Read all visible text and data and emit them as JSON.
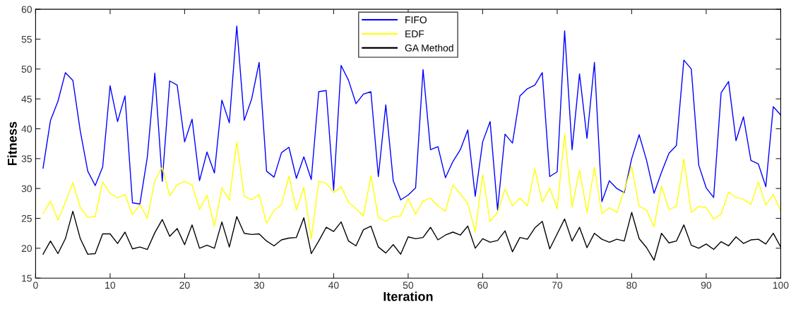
{
  "chart_data": {
    "type": "line",
    "xlabel": "Iteration",
    "ylabel": "Fitness",
    "x": [
      1,
      2,
      3,
      4,
      5,
      6,
      7,
      8,
      9,
      10,
      11,
      12,
      13,
      14,
      15,
      16,
      17,
      18,
      19,
      20,
      21,
      22,
      23,
      24,
      25,
      26,
      27,
      28,
      29,
      30,
      31,
      32,
      33,
      34,
      35,
      36,
      37,
      38,
      39,
      40,
      41,
      42,
      43,
      44,
      45,
      46,
      47,
      48,
      49,
      50,
      51,
      52,
      53,
      54,
      55,
      56,
      57,
      58,
      59,
      60,
      61,
      62,
      63,
      64,
      65,
      66,
      67,
      68,
      69,
      70,
      71,
      72,
      73,
      74,
      75,
      76,
      77,
      78,
      79,
      80,
      81,
      82,
      83,
      84,
      85,
      86,
      87,
      88,
      89,
      90,
      91,
      92,
      93,
      94,
      95,
      96,
      97,
      98,
      99,
      100
    ],
    "xlim": [
      0,
      100
    ],
    "xticks": [
      0,
      10,
      20,
      30,
      40,
      50,
      60,
      70,
      80,
      90,
      100
    ],
    "ylim": [
      15,
      60
    ],
    "yticks": [
      15,
      20,
      25,
      30,
      35,
      40,
      45,
      50,
      55,
      60
    ],
    "grid": false,
    "legend": "top",
    "marker": "none",
    "line_style": "solid",
    "series": [
      {
        "name": "FIFO",
        "color": "#0000ff",
        "values": [
          33.4,
          41.4,
          44.6,
          49.4,
          48.1,
          39.6,
          32.9,
          30.5,
          33.6,
          47.2,
          41.2,
          45.5,
          27.6,
          27.4,
          35.3,
          49.3,
          31.2,
          48,
          47.3,
          37.8,
          41.6,
          31.3,
          36.1,
          32.6,
          44.8,
          41,
          57.2,
          41.4,
          45,
          51.1,
          32.9,
          31.9,
          36,
          36.9,
          31.7,
          35.3,
          31.5,
          46.2,
          46.4,
          29.7,
          50.6,
          48.1,
          44.2,
          45.8,
          46.2,
          32,
          44,
          31.3,
          28.1,
          28.9,
          30.1,
          49.9,
          36.5,
          37,
          31.8,
          34.5,
          36.5,
          39.8,
          28.7,
          37.8,
          41.2,
          26.4,
          39.1,
          37.6,
          45.5,
          46.7,
          47.3,
          49.4,
          32,
          32.8,
          56.4,
          36.5,
          49.2,
          38.4,
          51.1,
          27.8,
          31.3,
          30,
          29.3,
          35,
          39,
          34.7,
          29.2,
          32.7,
          35.9,
          37.2,
          51.5,
          50,
          33.9,
          30.1,
          28.5,
          46,
          47.9,
          38,
          42,
          34.7,
          34.1,
          30.3,
          43.7,
          42.3
        ]
      },
      {
        "name": "EDF",
        "color": "#ffff00",
        "values": [
          25.8,
          27.9,
          24.7,
          27.7,
          31,
          26.8,
          25.2,
          25.3,
          31.1,
          29.2,
          28.4,
          29,
          25.6,
          27.3,
          25,
          31.3,
          33.6,
          28.8,
          30.6,
          31.2,
          30.6,
          26.5,
          28.9,
          23.7,
          30.1,
          28.1,
          37.8,
          28.7,
          28.1,
          29,
          24.2,
          26.3,
          27.3,
          32.1,
          26.4,
          30.2,
          21.6,
          31.2,
          30.9,
          29.3,
          30.3,
          27.7,
          26.6,
          25.4,
          32.1,
          25.2,
          24.5,
          25.3,
          25.4,
          28.3,
          25.7,
          27.9,
          28.4,
          27.1,
          26.2,
          30.6,
          29.1,
          27.5,
          22.8,
          32.3,
          24.5,
          26,
          29.9,
          27.1,
          28.4,
          27.1,
          33.3,
          27.7,
          30.1,
          26.6,
          39.1,
          26.9,
          33.1,
          26,
          33.5,
          25.8,
          26.8,
          26,
          29.7,
          33.7,
          27,
          26.4,
          23.6,
          30.4,
          26.5,
          27,
          34.9,
          26,
          27,
          26.8,
          24.9,
          25.7,
          29.4,
          28.5,
          28.2,
          27.3,
          31.1,
          27.2,
          29,
          26.2
        ]
      },
      {
        "name": "GA Method",
        "color": "#000000",
        "values": [
          19,
          21.2,
          19.1,
          21.6,
          26.2,
          21.6,
          19,
          19.1,
          22.4,
          22.4,
          20.8,
          22.7,
          19.9,
          20.2,
          19.8,
          22.6,
          24.8,
          22,
          23.3,
          20.6,
          23.9,
          20,
          20.5,
          20,
          24.4,
          20.2,
          25.3,
          22.5,
          22.3,
          22.4,
          21.2,
          20.4,
          21.4,
          21.7,
          21.8,
          25.1,
          19.1,
          21.2,
          23.5,
          22.8,
          24.4,
          21.2,
          20.4,
          23.1,
          23.7,
          20.2,
          19.2,
          20.6,
          19,
          21.9,
          21.6,
          21.8,
          23.5,
          21.4,
          22.2,
          22.7,
          22.2,
          23.7,
          20,
          21.6,
          21,
          21.3,
          22.9,
          19.4,
          21.8,
          21.5,
          23.4,
          24.5,
          19.9,
          22.4,
          24.9,
          21.2,
          23.5,
          20.1,
          22.5,
          21.5,
          21,
          21.5,
          21.2,
          26,
          21.6,
          20.1,
          18,
          22.5,
          20.9,
          21.2,
          23.9,
          20.5,
          20,
          20.7,
          19.8,
          21.1,
          20.4,
          21.9,
          20.8,
          21.4,
          21.5,
          20.7,
          22.5,
          20.2
        ]
      }
    ]
  }
}
